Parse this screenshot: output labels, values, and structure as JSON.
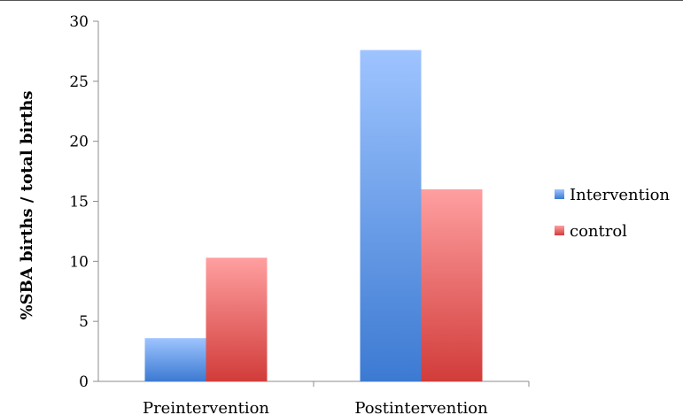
{
  "chart_data": {
    "type": "bar",
    "title": "",
    "xlabel": "",
    "ylabel": "%SBA births / total births",
    "ylim": [
      0,
      30
    ],
    "yticks": [
      0,
      5,
      10,
      15,
      20,
      25,
      30
    ],
    "categories": [
      "Preintervention",
      "Postintervention"
    ],
    "series": [
      {
        "name": "Intervention",
        "values": [
          3.6,
          27.6
        ],
        "color_top": "#9ec4ff",
        "color_bottom": "#3c7ad2"
      },
      {
        "name": "control",
        "values": [
          10.3,
          16.0
        ],
        "color_top": "#ff9fa0",
        "color_bottom": "#d13c3a"
      }
    ],
    "grid": false,
    "legend": "right"
  }
}
